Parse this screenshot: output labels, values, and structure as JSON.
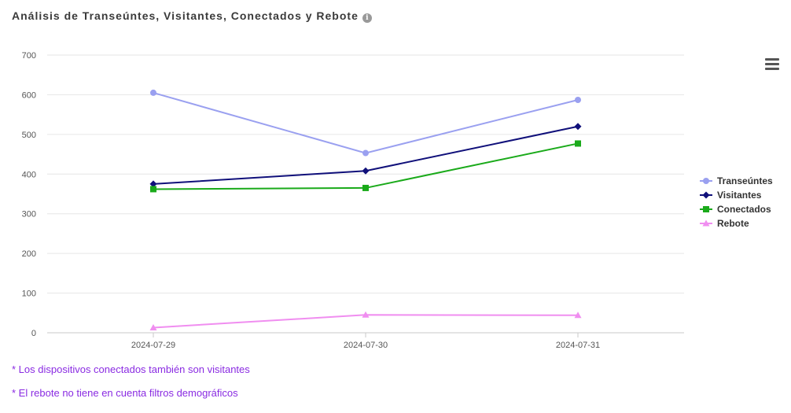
{
  "header": {
    "title": "Análisis de Transeúntes, Visitantes, Conectados y Rebote"
  },
  "notes": [
    "* Los dispositivos conectados también son visitantes",
    "* El rebote no tiene en cuenta filtros demográficos"
  ],
  "chart_data": {
    "type": "line",
    "categories": [
      "2024-07-29",
      "2024-07-30",
      "2024-07-31"
    ],
    "ylim": [
      0,
      700
    ],
    "yticks": [
      0,
      100,
      200,
      300,
      400,
      500,
      600,
      700
    ],
    "grid": true,
    "legend_position": "right",
    "series": [
      {
        "name": "Transeúntes",
        "values": [
          605,
          453,
          587
        ],
        "color": "#9aa0f0",
        "marker": "circle"
      },
      {
        "name": "Visitantes",
        "values": [
          375,
          408,
          520
        ],
        "color": "#10107a",
        "marker": "diamond"
      },
      {
        "name": "Conectados",
        "values": [
          362,
          365,
          477
        ],
        "color": "#1aaa1a",
        "marker": "square"
      },
      {
        "name": "Rebote",
        "values": [
          13,
          45,
          44
        ],
        "color": "#f08ef0",
        "marker": "triangle"
      }
    ]
  }
}
